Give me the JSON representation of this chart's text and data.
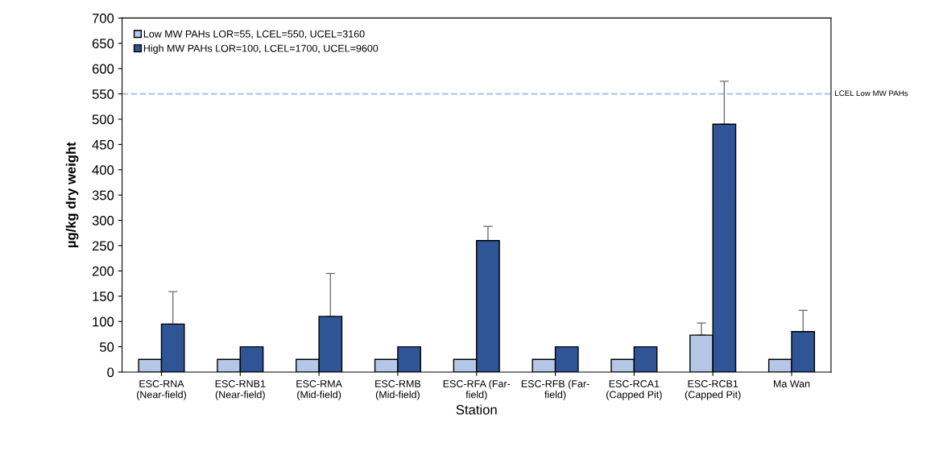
{
  "chart_data": {
    "type": "bar",
    "xlabel": "Station",
    "ylabel": "µg/kg dry weight",
    "categories": [
      "ESC-RNA\n(Near-field)",
      "ESC-RNB1\n(Near-field)",
      "ESC-RMA\n(Mid-field)",
      "ESC-RMB\n(Mid-field)",
      "ESC-RFA (Far-\nfield)",
      "ESC-RFB (Far-\nfield)",
      "ESC-RCA1\n(Capped Pit)",
      "ESC-RCB1\n(Capped Pit)",
      "Ma Wan"
    ],
    "series": [
      {
        "name": "Low MW PAHs LOR=55, LCEL=550, UCEL=3160",
        "color": "#b4c7e7",
        "values": [
          25,
          25,
          25,
          25,
          25,
          25,
          25,
          73,
          25
        ],
        "errors": [
          null,
          null,
          null,
          null,
          null,
          null,
          null,
          [
            73,
            97
          ],
          null
        ]
      },
      {
        "name": "High MW PAHs LOR=100, LCEL=1700, UCEL=9600",
        "color": "#2f5597",
        "values": [
          95,
          50,
          110,
          50,
          260,
          50,
          50,
          490,
          80
        ],
        "errors": [
          [
            95,
            159
          ],
          null,
          [
            110,
            195
          ],
          null,
          [
            260,
            288
          ],
          null,
          null,
          [
            490,
            575
          ],
          [
            80,
            122
          ]
        ]
      }
    ],
    "ylim": [
      0,
      700
    ],
    "yticks": [
      0,
      50,
      100,
      150,
      200,
      250,
      300,
      350,
      400,
      450,
      500,
      550,
      600,
      650,
      700
    ],
    "ref_lines": [
      {
        "axis": "y",
        "value": 550,
        "label": "LCEL Low MW PAHs",
        "color": "#b4c7e7",
        "line_style": "dashed"
      }
    ],
    "legend": "top left",
    "grid": false
  }
}
